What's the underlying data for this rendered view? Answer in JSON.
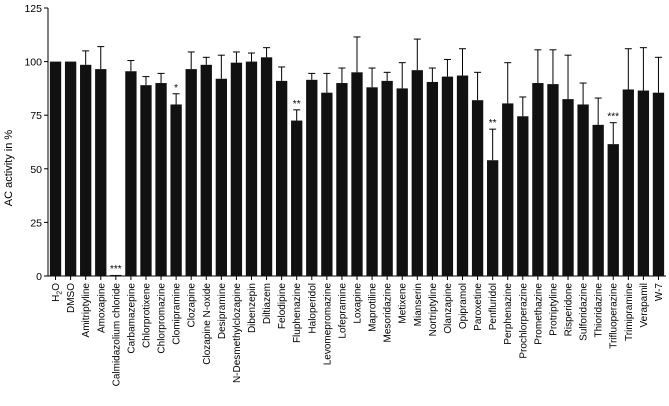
{
  "chart_data": {
    "type": "bar",
    "ylabel": "AC activity in %",
    "xlabel": "",
    "ylim": [
      0,
      125
    ],
    "yticks": [
      0,
      25,
      50,
      75,
      100,
      125
    ],
    "grid": false,
    "bar_color": "#111111",
    "categories": [
      "H2O",
      "DMSO",
      "Amitriptyline",
      "Amoxapine",
      "Calmidazolium chloride",
      "Carbamazepine",
      "Chlorprotixene",
      "Chlorpromazine",
      "Clomipramine",
      "Clozapine",
      "Clozapine N-oxide",
      "Desipramine",
      "N-Desmethylclozapine",
      "Dibenzepin",
      "Diltiazem",
      "Felodipine",
      "Fluphenazine",
      "Haloperidol",
      "Levomepromazine",
      "Lofepramine",
      "Loxapine",
      "Maprotiline",
      "Mesoridazine",
      "Metixene",
      "Mianserin",
      "Nortriptyline",
      "Olanzapine",
      "Opipramol",
      "Paroxetine",
      "Penfluridol",
      "Perphenazine",
      "Prochlorperazine",
      "Promethazine",
      "Protriptyline",
      "Risperidone",
      "Sulforidazine",
      "Thioridazine",
      "Trifluoperazine",
      "Trimipramine",
      "Verapamil",
      "W-7"
    ],
    "values": [
      100,
      100,
      98.5,
      96.5,
      0.5,
      95.5,
      89,
      90,
      80,
      96.5,
      98.5,
      92,
      99.5,
      100,
      102,
      91,
      72.5,
      91.5,
      85.5,
      90,
      95,
      88,
      91,
      87.5,
      96,
      90.5,
      93,
      93.5,
      82,
      54,
      80.5,
      74.5,
      90,
      89.5,
      82.5,
      80,
      70.5,
      61.5,
      87,
      86.5,
      85.5
    ],
    "errors": [
      0,
      0,
      6.5,
      10.5,
      0,
      5,
      4,
      4.5,
      5,
      8,
      3.5,
      11,
      5,
      4,
      4.5,
      6.5,
      5,
      3,
      9,
      7,
      16.5,
      9,
      4,
      12,
      14.5,
      6.5,
      8,
      12.5,
      13,
      14.5,
      19,
      9,
      15.5,
      16,
      20.5,
      10,
      12.5,
      10,
      19,
      20,
      16.5
    ],
    "significance": [
      "",
      "",
      "",
      "",
      "***",
      "",
      "",
      "",
      "*",
      "",
      "",
      "",
      "",
      "",
      "",
      "",
      "**",
      "",
      "",
      "",
      "",
      "",
      "",
      "",
      "",
      "",
      "",
      "",
      "",
      "**",
      "",
      "",
      "",
      "",
      "",
      "",
      "",
      "***",
      "",
      "",
      ""
    ]
  }
}
